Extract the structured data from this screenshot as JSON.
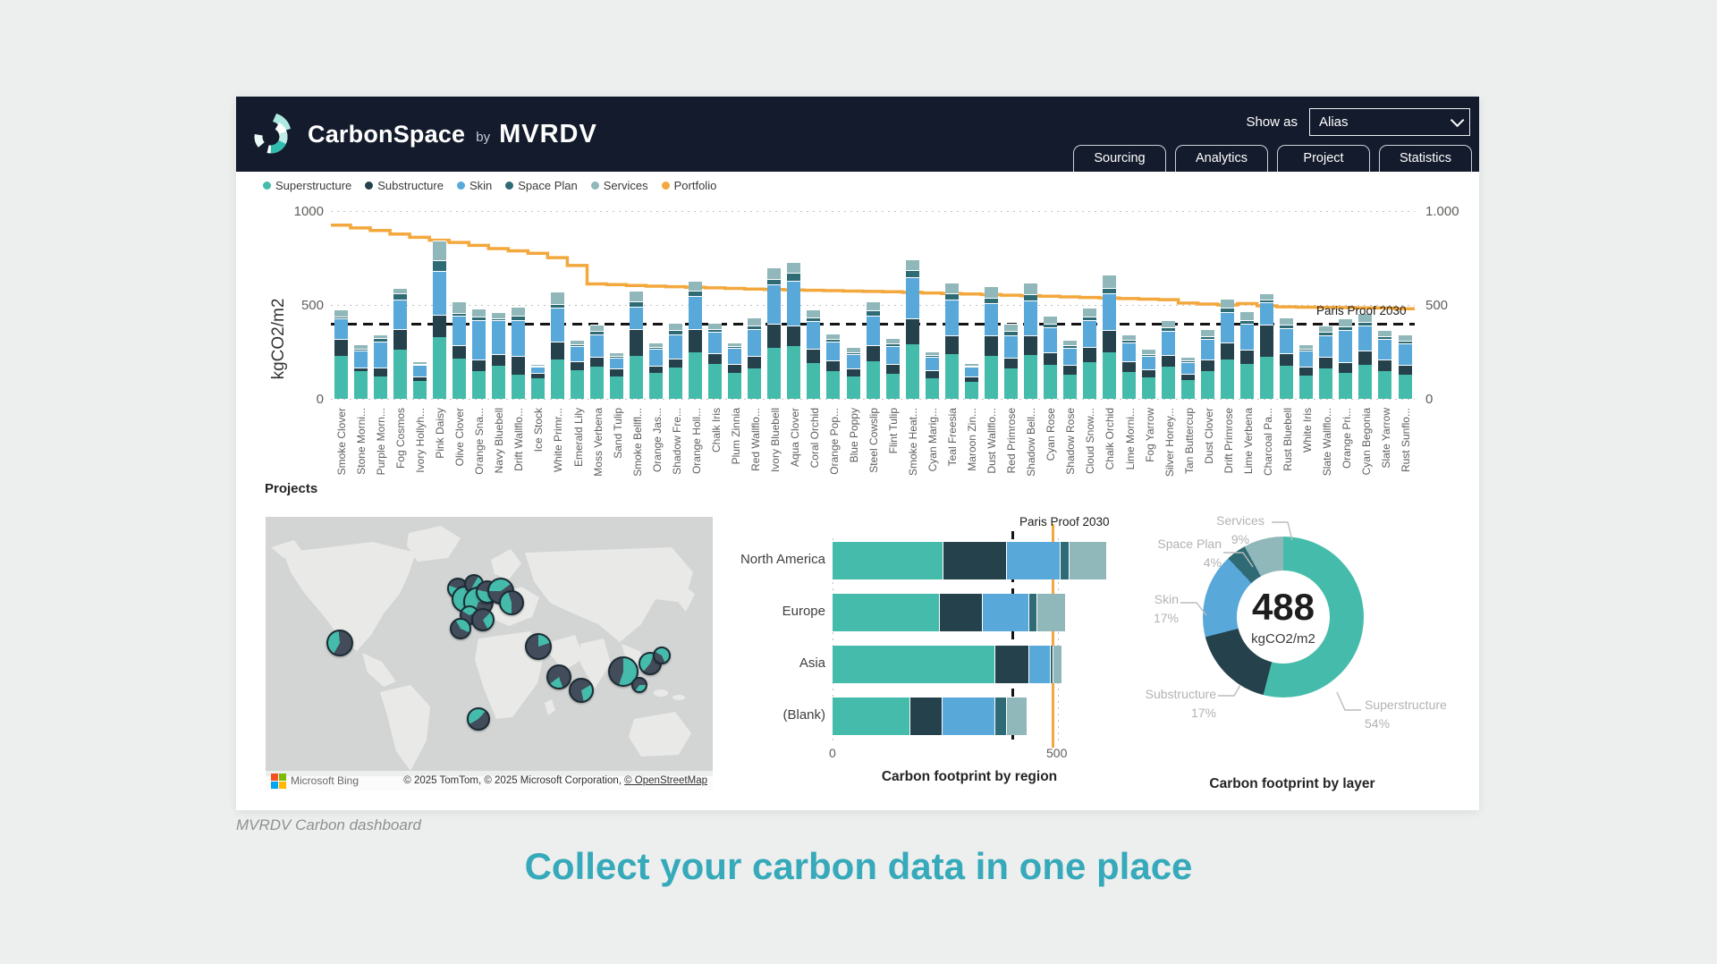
{
  "page": {
    "caption": "MVRDV Carbon dashboard",
    "headline": "Collect your carbon data in one place",
    "headline_color": "#36a9ba",
    "background": "#ecefee"
  },
  "header": {
    "app_name": "CarbonSpace",
    "by_label": "by",
    "brand": "MVRDV",
    "show_as_label": "Show as",
    "show_as_value": "Alias",
    "tabs": [
      "Sourcing",
      "Analytics",
      "Project",
      "Statistics"
    ],
    "background": "#141b2c"
  },
  "colors": {
    "superstructure": "#45bcab",
    "substructure": "#25414b",
    "skin": "#58a8da",
    "space_plan": "#2e6b74",
    "services": "#90b7ba",
    "portfolio": "#f3a83d"
  },
  "legend": [
    {
      "label": "Superstructure",
      "color_key": "superstructure"
    },
    {
      "label": "Substructure",
      "color_key": "substructure"
    },
    {
      "label": "Skin",
      "color_key": "skin"
    },
    {
      "label": "Space Plan",
      "color_key": "space_plan"
    },
    {
      "label": "Services",
      "color_key": "services"
    },
    {
      "label": "Portfolio",
      "color_key": "portfolio"
    }
  ],
  "projects_heading": "Projects",
  "map": {
    "attribution_brand": "Microsoft Bing",
    "attribution_text": "© 2025 TomTom, © 2025 Microsoft Corporation, ",
    "attribution_link": "© OpenStreetMap",
    "markers": [
      {
        "x": 16.5,
        "y": 46,
        "s": 30,
        "teal": 40,
        "rot": 210
      },
      {
        "x": 43,
        "y": 26,
        "s": 24,
        "teal": 55,
        "rot": 90
      },
      {
        "x": 44.5,
        "y": 30,
        "s": 30,
        "teal": 65,
        "rot": 150
      },
      {
        "x": 46.5,
        "y": 24.5,
        "s": 22,
        "teal": 50,
        "rot": 30
      },
      {
        "x": 47.5,
        "y": 31,
        "s": 34,
        "teal": 70,
        "rot": 200
      },
      {
        "x": 49.5,
        "y": 27.5,
        "s": 26,
        "teal": 45,
        "rot": 120
      },
      {
        "x": 45.5,
        "y": 36,
        "s": 22,
        "teal": 35,
        "rot": 300
      },
      {
        "x": 48.5,
        "y": 37.5,
        "s": 26,
        "teal": 30,
        "rot": 45
      },
      {
        "x": 52.5,
        "y": 27,
        "s": 30,
        "teal": 40,
        "rot": 270
      },
      {
        "x": 55,
        "y": 31.5,
        "s": 28,
        "teal": 45,
        "rot": 180
      },
      {
        "x": 43.5,
        "y": 41,
        "s": 24,
        "teal": 40,
        "rot": 330
      },
      {
        "x": 61,
        "y": 47.5,
        "s": 30,
        "teal": 20,
        "rot": 0
      },
      {
        "x": 65.5,
        "y": 58.5,
        "s": 28,
        "teal": 20,
        "rot": 160
      },
      {
        "x": 70.5,
        "y": 63.5,
        "s": 28,
        "teal": 30,
        "rot": 60
      },
      {
        "x": 80,
        "y": 56.5,
        "s": 34,
        "teal": 55,
        "rot": 0
      },
      {
        "x": 83.5,
        "y": 61.5,
        "s": 18,
        "teal": 35,
        "rot": 90
      },
      {
        "x": 86,
        "y": 53.5,
        "s": 26,
        "teal": 45,
        "rot": 220
      },
      {
        "x": 88.5,
        "y": 50.5,
        "s": 20,
        "teal": 60,
        "rot": 300
      },
      {
        "x": 47.5,
        "y": 74,
        "s": 26,
        "teal": 45,
        "rot": 240
      }
    ]
  },
  "chart_data": [
    {
      "id": "carbon-by-project",
      "type": "bar",
      "stacked": true,
      "ylabel": "kgCO2/m2",
      "ylim": [
        0,
        1000
      ],
      "y_ticks_left": [
        "1000",
        "500",
        "0"
      ],
      "y_ticks_right": [
        "1.000",
        "500",
        "0"
      ],
      "reference_line": {
        "label": "Paris Proof 2030",
        "value": 400
      },
      "categories": [
        "Smoke Clover",
        "Stone Morni...",
        "Purple Morn...",
        "Fog Cosmos",
        "Ivory Hollyh...",
        "Pink Daisy",
        "Olive Clover",
        "Orange Sna...",
        "Navy Bluebell",
        "Drift Wallflo...",
        "Ice Stock",
        "White Primr...",
        "Emerald Lily",
        "Moss Verbena",
        "Sand Tulip",
        "Smoke Bellfl...",
        "Orange Jas...",
        "Shadow Fre...",
        "Orange Holl...",
        "Chalk Iris",
        "Plum Zinnia",
        "Red Wallflo...",
        "Ivory Bluebell",
        "Aqua Clover",
        "Coral Orchid",
        "Orange Pop...",
        "Blue Poppy",
        "Steel Cowslip",
        "Flint Tulip",
        "Smoke Heat...",
        "Cyan Marig...",
        "Teal Freesia",
        "Maroon Zin...",
        "Dust Wallflo...",
        "Red Primrose",
        "Shadow Bell...",
        "Cyan Rose",
        "Shadow Rose",
        "Cloud Snow...",
        "Chalk Orchid",
        "Lime Morni...",
        "Fog Yarrow",
        "Silver Honey...",
        "Tan Buttercup",
        "Dust Clover",
        "Drift Primrose",
        "Lime Verbena",
        "Charcoal Pa...",
        "Rust Bluebell",
        "White Iris",
        "Slate Wallflo...",
        "Orange Pri...",
        "Cyan Begonia",
        "Slate Yarrow",
        "Rust Sunflo..."
      ],
      "series": [
        {
          "name": "Superstructure",
          "color_key": "superstructure",
          "values": [
            230,
            150,
            120,
            260,
            95,
            330,
            215,
            150,
            175,
            130,
            110,
            210,
            155,
            170,
            120,
            230,
            140,
            165,
            250,
            185,
            140,
            160,
            270,
            280,
            190,
            150,
            120,
            200,
            135,
            290,
            110,
            240,
            90,
            230,
            160,
            235,
            180,
            130,
            195,
            250,
            145,
            115,
            170,
            100,
            150,
            210,
            185,
            225,
            175,
            125,
            160,
            140,
            180,
            150,
            130
          ]
        },
        {
          "name": "Substructure",
          "color_key": "substructure",
          "values": [
            90,
            15,
            45,
            110,
            25,
            120,
            70,
            60,
            65,
            100,
            30,
            95,
            45,
            55,
            40,
            140,
            35,
            50,
            120,
            60,
            45,
            70,
            130,
            110,
            75,
            55,
            40,
            85,
            50,
            140,
            45,
            100,
            30,
            110,
            60,
            105,
            70,
            50,
            80,
            115,
            55,
            40,
            65,
            35,
            60,
            90,
            75,
            170,
            70,
            45,
            65,
            55,
            75,
            60,
            50
          ]
        },
        {
          "name": "Skin",
          "color_key": "skin",
          "values": [
            110,
            95,
            140,
            160,
            60,
            230,
            160,
            210,
            180,
            190,
            30,
            180,
            80,
            120,
            60,
            120,
            90,
            130,
            180,
            110,
            85,
            140,
            210,
            240,
            150,
            100,
            80,
            160,
            95,
            220,
            70,
            190,
            50,
            170,
            120,
            185,
            130,
            90,
            145,
            195,
            100,
            75,
            125,
            60,
            110,
            160,
            140,
            120,
            130,
            85,
            115,
            170,
            135,
            110,
            115
          ]
        },
        {
          "name": "Space Plan",
          "color_key": "space_plan",
          "values": [
            10,
            5,
            20,
            30,
            5,
            60,
            15,
            20,
            10,
            25,
            5,
            20,
            10,
            15,
            10,
            30,
            10,
            20,
            25,
            15,
            10,
            20,
            30,
            40,
            20,
            15,
            10,
            25,
            15,
            35,
            10,
            30,
            5,
            30,
            20,
            30,
            20,
            15,
            20,
            30,
            15,
            10,
            20,
            10,
            15,
            25,
            20,
            15,
            20,
            10,
            15,
            20,
            20,
            15,
            15
          ]
        },
        {
          "name": "Services",
          "color_key": "services",
          "values": [
            35,
            25,
            20,
            30,
            15,
            105,
            60,
            40,
            30,
            45,
            10,
            65,
            25,
            35,
            20,
            55,
            25,
            40,
            55,
            35,
            20,
            45,
            60,
            60,
            40,
            30,
            25,
            50,
            30,
            60,
            20,
            60,
            15,
            60,
            40,
            65,
            45,
            30,
            45,
            70,
            30,
            25,
            40,
            20,
            35,
            50,
            45,
            30,
            40,
            25,
            35,
            45,
            45,
            30,
            35
          ]
        }
      ],
      "line_series": {
        "name": "Portfolio",
        "color_key": "portfolio",
        "values": [
          925,
          910,
          896,
          877,
          860,
          845,
          833,
          817,
          800,
          788,
          775,
          752,
          710,
          612,
          608,
          604,
          600,
          597,
          594,
          591,
          588,
          585,
          582,
          580,
          578,
          576,
          574,
          572,
          570,
          567,
          564,
          561,
          558,
          555,
          552,
          549,
          546,
          543,
          540,
          537,
          534,
          531,
          528,
          510,
          505,
          500,
          507,
          495,
          490,
          488,
          487,
          486,
          485,
          484,
          480
        ]
      }
    },
    {
      "id": "carbon-by-region",
      "type": "bar",
      "orientation": "horizontal",
      "stacked": true,
      "title": "Carbon footprint by region",
      "categories": [
        "North America",
        "Europe",
        "Asia",
        "(Blank)"
      ],
      "xlim": [
        0,
        620
      ],
      "x_ticks": [
        "0",
        "500"
      ],
      "reference_line": {
        "label": "Paris Proof 2030",
        "value": 400
      },
      "marker_line": {
        "value": 490,
        "color_key": "portfolio"
      },
      "series": [
        {
          "name": "Superstructure",
          "color_key": "superstructure",
          "values": [
            243,
            236,
            360,
            170
          ]
        },
        {
          "name": "Substructure",
          "color_key": "substructure",
          "values": [
            141,
            96,
            74,
            73
          ]
        },
        {
          "name": "Skin",
          "color_key": "skin",
          "values": [
            120,
            103,
            48,
            116
          ]
        },
        {
          "name": "Space Plan",
          "color_key": "space_plan",
          "values": [
            20,
            18,
            7,
            26
          ]
        },
        {
          "name": "Services",
          "color_key": "services",
          "values": [
            84,
            63,
            19,
            45
          ]
        }
      ]
    },
    {
      "id": "carbon-by-layer",
      "type": "pie",
      "title": "Carbon footprint by layer",
      "center_value": "488",
      "center_unit": "kgCO2/m2",
      "slices": [
        {
          "label": "Superstructure",
          "pct": 54,
          "color_key": "superstructure"
        },
        {
          "label": "Substructure",
          "pct": 17,
          "color_key": "substructure"
        },
        {
          "label": "Skin",
          "pct": 17,
          "color_key": "skin"
        },
        {
          "label": "Space Plan",
          "pct": 4,
          "color_key": "space_plan"
        },
        {
          "label": "Services",
          "pct": 9,
          "color_key": "services"
        }
      ]
    }
  ]
}
